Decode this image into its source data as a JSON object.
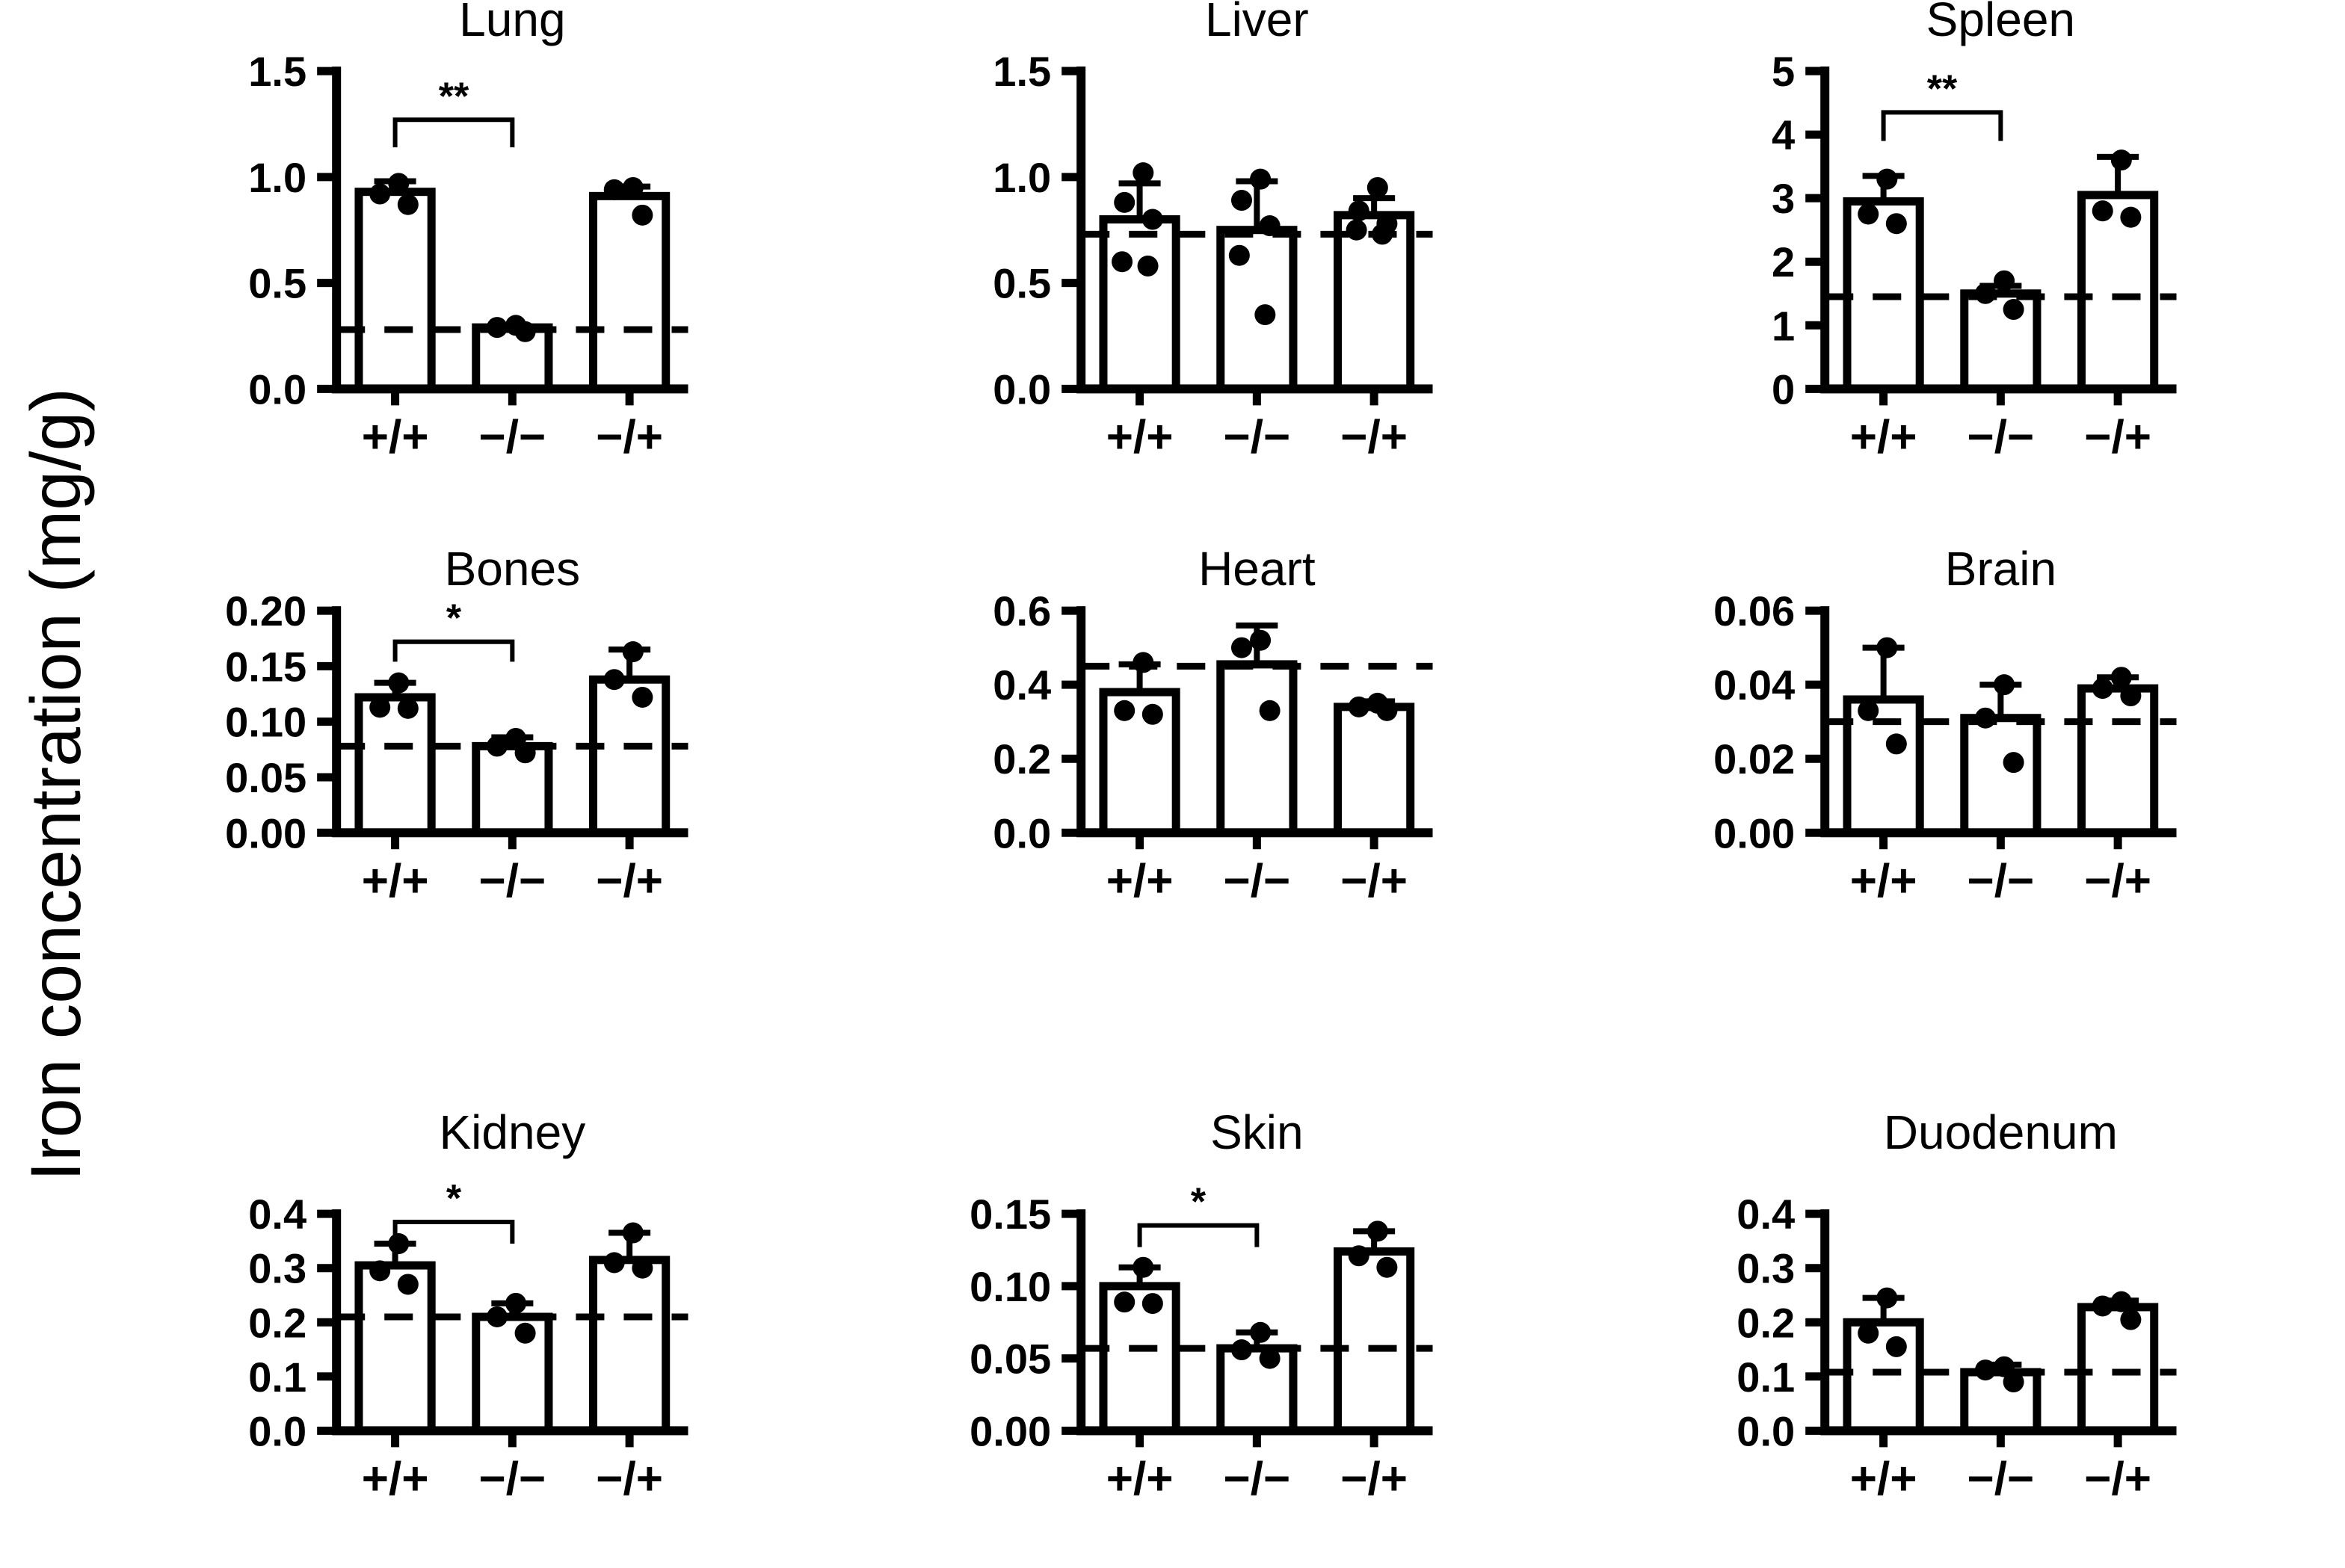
{
  "figure": {
    "ylabel": "Iron concentration (mg/g)"
  },
  "chart_data": [
    {
      "type": "bar",
      "title": "Lung",
      "categories": [
        "+/+",
        "−/−",
        "−/+"
      ],
      "values": [
        0.93,
        0.29,
        0.91
      ],
      "errors_up": [
        0.05,
        0.012,
        0.045
      ],
      "points": [
        [
          0.97,
          0.92,
          0.87
        ],
        [
          0.3,
          0.29,
          0.27
        ],
        [
          0.95,
          0.94,
          0.82
        ]
      ],
      "dashed_line": 0.28,
      "ylim": [
        0,
        1.5
      ],
      "yticks": [
        0,
        0.5,
        1.0,
        1.5
      ],
      "ytick_labels": [
        "0.0",
        "0.5",
        "1.0",
        "1.5"
      ],
      "significance": {
        "from": 0,
        "to": 1,
        "label": "**",
        "y": 1.27,
        "drop": 0.13
      }
    },
    {
      "type": "bar",
      "title": "Liver",
      "categories": [
        "+/+",
        "−/−",
        "−/+"
      ],
      "values": [
        0.8,
        0.75,
        0.82
      ],
      "errors_up": [
        0.17,
        0.23,
        0.08
      ],
      "points": [
        [
          1.02,
          0.88,
          0.8,
          0.6,
          0.58
        ],
        [
          0.99,
          0.89,
          0.77,
          0.63,
          0.35
        ],
        [
          0.95,
          0.84,
          0.78,
          0.75,
          0.73
        ]
      ],
      "dashed_line": 0.73,
      "ylim": [
        0,
        1.5
      ],
      "yticks": [
        0,
        0.5,
        1.0,
        1.5
      ],
      "ytick_labels": [
        "0.0",
        "0.5",
        "1.0",
        "1.5"
      ],
      "significance": null
    },
    {
      "type": "bar",
      "title": "Spleen",
      "categories": [
        "+/+",
        "−/−",
        "−/+"
      ],
      "values": [
        2.95,
        1.5,
        3.05
      ],
      "errors_up": [
        0.4,
        0.12,
        0.6
      ],
      "points": [
        [
          3.3,
          2.75,
          2.6
        ],
        [
          1.7,
          1.5,
          1.25
        ],
        [
          3.6,
          2.8,
          2.7
        ]
      ],
      "dashed_line": 1.45,
      "ylim": [
        0,
        5
      ],
      "yticks": [
        0,
        1,
        2,
        3,
        4,
        5
      ],
      "ytick_labels": [
        "0",
        "1",
        "2",
        "3",
        "4",
        "5"
      ],
      "significance": {
        "from": 0,
        "to": 1,
        "label": "**",
        "y": 4.35,
        "drop": 0.45
      }
    },
    {
      "type": "bar",
      "title": "Bones",
      "categories": [
        "+/+",
        "−/−",
        "−/+"
      ],
      "values": [
        0.122,
        0.078,
        0.138
      ],
      "errors_up": [
        0.013,
        0.008,
        0.027
      ],
      "points": [
        [
          0.135,
          0.113,
          0.112
        ],
        [
          0.085,
          0.078,
          0.072
        ],
        [
          0.163,
          0.138,
          0.122
        ]
      ],
      "dashed_line": 0.078,
      "ylim": [
        0,
        0.2
      ],
      "yticks": [
        0,
        0.05,
        0.1,
        0.15,
        0.2
      ],
      "ytick_labels": [
        "0.00",
        "0.05",
        "0.10",
        "0.15",
        "0.20"
      ],
      "significance": {
        "from": 0,
        "to": 1,
        "label": "*",
        "y": 0.172,
        "drop": 0.018
      }
    },
    {
      "type": "bar",
      "title": "Heart",
      "categories": [
        "+/+",
        "−/−",
        "−/+"
      ],
      "values": [
        0.38,
        0.455,
        0.34
      ],
      "errors_up": [
        0.075,
        0.105,
        0.015
      ],
      "points": [
        [
          0.46,
          0.33,
          0.32
        ],
        [
          0.52,
          0.5,
          0.33
        ],
        [
          0.35,
          0.34,
          0.33
        ]
      ],
      "dashed_line": 0.45,
      "ylim": [
        0,
        0.6
      ],
      "yticks": [
        0,
        0.2,
        0.4,
        0.6
      ],
      "ytick_labels": [
        "0.0",
        "0.2",
        "0.4",
        "0.6"
      ],
      "significance": null
    },
    {
      "type": "bar",
      "title": "Brain",
      "categories": [
        "+/+",
        "−/−",
        "−/+"
      ],
      "values": [
        0.036,
        0.031,
        0.039
      ],
      "errors_up": [
        0.014,
        0.009,
        0.003
      ],
      "points": [
        [
          0.05,
          0.033,
          0.024
        ],
        [
          0.04,
          0.031,
          0.019
        ],
        [
          0.042,
          0.039,
          0.037
        ]
      ],
      "dashed_line": 0.03,
      "ylim": [
        0,
        0.06
      ],
      "yticks": [
        0,
        0.02,
        0.04,
        0.06
      ],
      "ytick_labels": [
        "0.00",
        "0.02",
        "0.04",
        "0.06"
      ],
      "significance": null
    },
    {
      "type": "bar",
      "title": "Kidney",
      "categories": [
        "+/+",
        "−/−",
        "−/+"
      ],
      "values": [
        0.305,
        0.21,
        0.315
      ],
      "errors_up": [
        0.04,
        0.025,
        0.05
      ],
      "points": [
        [
          0.345,
          0.295,
          0.27
        ],
        [
          0.235,
          0.21,
          0.18
        ],
        [
          0.365,
          0.31,
          0.3
        ]
      ],
      "dashed_line": 0.21,
      "ylim": [
        0,
        0.4
      ],
      "yticks": [
        0,
        0.1,
        0.2,
        0.3,
        0.4
      ],
      "ytick_labels": [
        "0.0",
        "0.1",
        "0.2",
        "0.3",
        "0.4"
      ],
      "significance": {
        "from": 0,
        "to": 1,
        "label": "*",
        "y": 0.385,
        "drop": 0.04
      }
    },
    {
      "type": "bar",
      "title": "Skin",
      "categories": [
        "+/+",
        "−/−",
        "−/+"
      ],
      "values": [
        0.1,
        0.057,
        0.124
      ],
      "errors_up": [
        0.013,
        0.011,
        0.014
      ],
      "points": [
        [
          0.113,
          0.089,
          0.088
        ],
        [
          0.068,
          0.056,
          0.05
        ],
        [
          0.138,
          0.121,
          0.113
        ]
      ],
      "dashed_line": 0.057,
      "ylim": [
        0,
        0.15
      ],
      "yticks": [
        0,
        0.05,
        0.1,
        0.15
      ],
      "ytick_labels": [
        "0.00",
        "0.05",
        "0.10",
        "0.15"
      ],
      "significance": {
        "from": 0,
        "to": 1,
        "label": "*",
        "y": 0.142,
        "drop": 0.015
      }
    },
    {
      "type": "bar",
      "title": "Duodenum",
      "categories": [
        "+/+",
        "−/−",
        "−/+"
      ],
      "values": [
        0.2,
        0.108,
        0.228
      ],
      "errors_up": [
        0.045,
        0.014,
        0.012
      ],
      "points": [
        [
          0.245,
          0.18,
          0.155
        ],
        [
          0.118,
          0.112,
          0.09
        ],
        [
          0.238,
          0.23,
          0.205
        ]
      ],
      "dashed_line": 0.108,
      "ylim": [
        0,
        0.4
      ],
      "yticks": [
        0,
        0.1,
        0.2,
        0.3,
        0.4
      ],
      "ytick_labels": [
        "0.0",
        "0.1",
        "0.2",
        "0.3",
        "0.4"
      ],
      "significance": null
    }
  ]
}
